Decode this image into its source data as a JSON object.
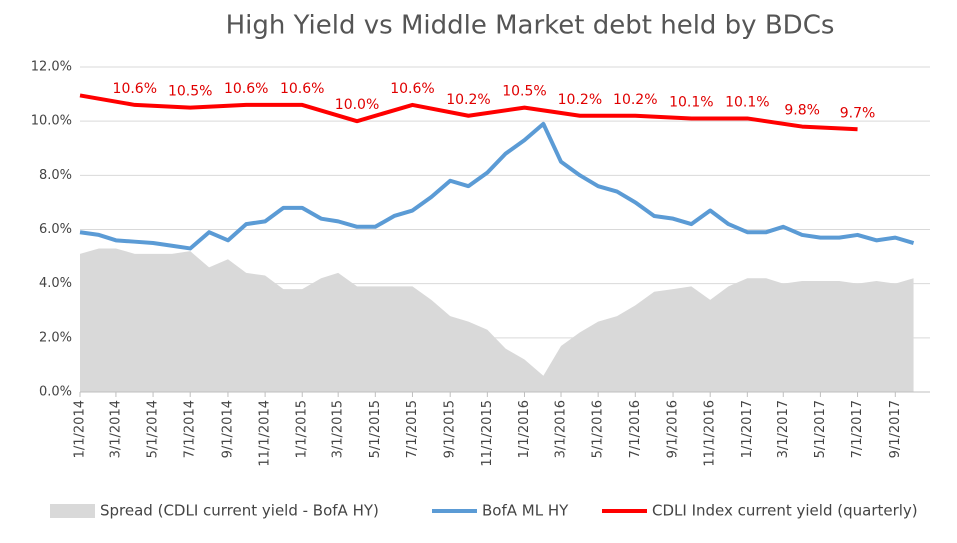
{
  "chart_data": {
    "type": "line",
    "title": "High Yield  vs  Middle Market debt held by BDCs",
    "xlim": [
      "2014-01-01",
      "2017-10-28"
    ],
    "xticks": [
      {
        "value": "2014-01-01",
        "label": "1/1/2014"
      },
      {
        "value": "2014-03-01",
        "label": "3/1/2014"
      },
      {
        "value": "2014-05-01",
        "label": "5/1/2014"
      },
      {
        "value": "2014-07-01",
        "label": "7/1/2014"
      },
      {
        "value": "2014-09-01",
        "label": "9/1/2014"
      },
      {
        "value": "2014-11-01",
        "label": "11/1/2014"
      },
      {
        "value": "2015-01-01",
        "label": "1/1/2015"
      },
      {
        "value": "2015-03-01",
        "label": "3/1/2015"
      },
      {
        "value": "2015-05-01",
        "label": "5/1/2015"
      },
      {
        "value": "2015-07-01",
        "label": "7/1/2015"
      },
      {
        "value": "2015-09-01",
        "label": "9/1/2015"
      },
      {
        "value": "2015-11-01",
        "label": "11/1/2015"
      },
      {
        "value": "2016-01-01",
        "label": "1/1/2016"
      },
      {
        "value": "2016-03-01",
        "label": "3/1/2016"
      },
      {
        "value": "2016-05-01",
        "label": "5/1/2016"
      },
      {
        "value": "2016-07-01",
        "label": "7/1/2016"
      },
      {
        "value": "2016-09-01",
        "label": "9/1/2016"
      },
      {
        "value": "2016-11-01",
        "label": "11/1/2016"
      },
      {
        "value": "2017-01-01",
        "label": "1/1/2017"
      },
      {
        "value": "2017-03-01",
        "label": "3/1/2017"
      },
      {
        "value": "2017-05-01",
        "label": "5/1/2017"
      },
      {
        "value": "2017-07-01",
        "label": "7/1/2017"
      },
      {
        "value": "2017-09-01",
        "label": "9/1/2017"
      }
    ],
    "ylim": [
      0,
      12
    ],
    "yticks": [
      {
        "value": 0,
        "label": "0.0%"
      },
      {
        "value": 2,
        "label": "2.0%"
      },
      {
        "value": 4,
        "label": "4.0%"
      },
      {
        "value": 6,
        "label": "6.0%"
      },
      {
        "value": 8,
        "label": "8.0%"
      },
      {
        "value": 10,
        "label": "10.0%"
      },
      {
        "value": 12,
        "label": "12.0%"
      }
    ],
    "grid": true,
    "legend": "bottom",
    "series": [
      {
        "name": "Spread (CDLI current yield - BofA HY)",
        "style": "area",
        "color": "#d9d9d9",
        "x": [
          "2014-01-01",
          "2014-02-01",
          "2014-03-01",
          "2014-04-01",
          "2014-05-01",
          "2014-06-01",
          "2014-07-01",
          "2014-08-01",
          "2014-09-01",
          "2014-10-01",
          "2014-11-01",
          "2014-12-01",
          "2015-01-01",
          "2015-02-01",
          "2015-03-01",
          "2015-04-01",
          "2015-05-01",
          "2015-06-01",
          "2015-07-01",
          "2015-08-01",
          "2015-09-01",
          "2015-10-01",
          "2015-11-01",
          "2015-12-01",
          "2016-01-01",
          "2016-02-01",
          "2016-03-01",
          "2016-04-01",
          "2016-05-01",
          "2016-06-01",
          "2016-07-01",
          "2016-08-01",
          "2016-09-01",
          "2016-10-01",
          "2016-11-01",
          "2016-12-01",
          "2017-01-01",
          "2017-02-01",
          "2017-03-01",
          "2017-04-01",
          "2017-05-01",
          "2017-06-01",
          "2017-07-01",
          "2017-08-01",
          "2017-09-01",
          "2017-10-01"
        ],
        "values": [
          5.1,
          5.3,
          5.3,
          5.1,
          5.1,
          5.1,
          5.2,
          4.6,
          4.9,
          4.4,
          4.3,
          3.8,
          3.8,
          4.2,
          4.4,
          3.9,
          3.9,
          3.9,
          3.9,
          3.4,
          2.8,
          2.6,
          2.3,
          1.6,
          1.2,
          0.6,
          1.7,
          2.2,
          2.6,
          2.8,
          3.2,
          3.7,
          3.8,
          3.9,
          3.4,
          3.9,
          4.2,
          4.2,
          4.0,
          4.1,
          4.1,
          4.1,
          4.0,
          4.1,
          4.0,
          4.2
        ]
      },
      {
        "name": "BofA ML HY",
        "style": "line",
        "color": "#5b9bd5",
        "x": [
          "2014-01-01",
          "2014-02-01",
          "2014-03-01",
          "2014-04-01",
          "2014-05-01",
          "2014-06-01",
          "2014-07-01",
          "2014-08-01",
          "2014-09-01",
          "2014-10-01",
          "2014-11-01",
          "2014-12-01",
          "2015-01-01",
          "2015-02-01",
          "2015-03-01",
          "2015-04-01",
          "2015-05-01",
          "2015-06-01",
          "2015-07-01",
          "2015-08-01",
          "2015-09-01",
          "2015-10-01",
          "2015-11-01",
          "2015-12-01",
          "2016-01-01",
          "2016-02-01",
          "2016-03-01",
          "2016-04-01",
          "2016-05-01",
          "2016-06-01",
          "2016-07-01",
          "2016-08-01",
          "2016-09-01",
          "2016-10-01",
          "2016-11-01",
          "2016-12-01",
          "2017-01-01",
          "2017-02-01",
          "2017-03-01",
          "2017-04-01",
          "2017-05-01",
          "2017-06-01",
          "2017-07-01",
          "2017-08-01",
          "2017-09-01",
          "2017-10-01"
        ],
        "values": [
          5.9,
          5.8,
          5.6,
          5.55,
          5.5,
          5.4,
          5.3,
          5.9,
          5.6,
          6.2,
          6.3,
          6.8,
          6.8,
          6.4,
          6.3,
          6.1,
          6.1,
          6.5,
          6.7,
          7.2,
          7.8,
          7.6,
          8.1,
          8.8,
          9.3,
          9.9,
          8.5,
          8.0,
          7.6,
          7.4,
          7.0,
          6.5,
          6.4,
          6.2,
          6.7,
          6.2,
          5.9,
          5.9,
          6.1,
          5.8,
          5.7,
          5.7,
          5.8,
          5.6,
          5.7,
          5.5
        ]
      },
      {
        "name": "CDLI Index current yield (quarterly)",
        "style": "line",
        "color": "#ff0000",
        "x": [
          "2014-01-01",
          "2014-04-01",
          "2014-07-01",
          "2014-10-01",
          "2015-01-01",
          "2015-04-01",
          "2015-07-01",
          "2015-10-01",
          "2016-01-01",
          "2016-04-01",
          "2016-07-01",
          "2016-10-01",
          "2017-01-01",
          "2017-04-01",
          "2017-07-01"
        ],
        "values": [
          10.95,
          10.6,
          10.5,
          10.6,
          10.6,
          10.0,
          10.6,
          10.2,
          10.5,
          10.2,
          10.2,
          10.1,
          10.1,
          9.8,
          9.7
        ],
        "value_labels": [
          null,
          "10.6%",
          "10.5%",
          "10.6%",
          "10.6%",
          "10.0%",
          "10.6%",
          "10.2%",
          "10.5%",
          "10.2%",
          "10.2%",
          "10.1%",
          "10.1%",
          "9.8%",
          "9.7%"
        ]
      }
    ]
  }
}
